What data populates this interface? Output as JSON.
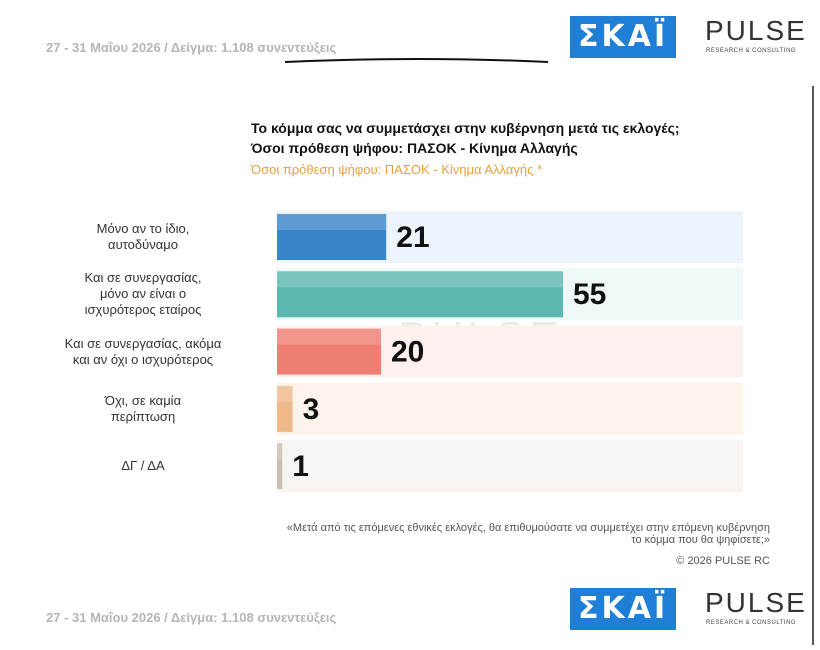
{
  "header": {
    "meta": "27 - 31 Μαΐου 2026  /  Δείγμα:  1.108 συνεντεύξεις",
    "logo_skai": "ΣΚΑΪ",
    "logo_pulse": "PULSE",
    "logo_pulse_sub": "RESEARCH & CONSULTING"
  },
  "chart_data": {
    "type": "hbar",
    "title": "Το κόμμα σας να συμμετάσχει στην κυβέρνηση μετά τις εκλογές;",
    "title_line2": "Όσοι πρόθεση ψήφου: ΠΑΣΟΚ - Κίνημα Αλλαγής",
    "subtitle": "Όσοι πρόθεση ψήφου: ΠΑΣΟΚ - Κίνημα Αλλαγής *",
    "categories": [
      "Μόνο αν το ίδιο,\nαυτοδύναμο",
      "Και σε συνεργασίας,\nμόνο αν είναι ο\nισχυρότερος εταίρος",
      "Και σε συνεργασίας, ακόμα\nκαι αν όχι ο ισχυρότερος",
      "Όχι, σε καμία\nπερίπτωση",
      "ΔΓ / ΔΑ"
    ],
    "values": [
      21,
      55,
      20,
      3,
      1
    ],
    "colors": [
      "#3a85c9",
      "#5cb7b0",
      "#ee7d72",
      "#f0b98c",
      "#cbbfb5"
    ],
    "band_colors": [
      "#eef4fb",
      "#eef8f7",
      "#fdf0ee",
      "#fdf3ea",
      "#f8f4f1"
    ]
  },
  "footer": {
    "question": "«Μετά από τις επόμενες εθνικές εκλογές, θα επιθυμούσατε να συμμετέχει στην επόμενη κυβέρνηση\nτο κόμμα που θα ψηφίσετε;»",
    "copyright": "©  2026  PULSE RC",
    "meta": "27 - 31 Μαΐου 2026  /  Δείγμα:  1.108 συνεντεύξεις",
    "logo_skai": "ΣΚΑΪ",
    "logo_pulse": "PULSE",
    "logo_pulse_sub": "RESEARCH & CONSULTING"
  }
}
